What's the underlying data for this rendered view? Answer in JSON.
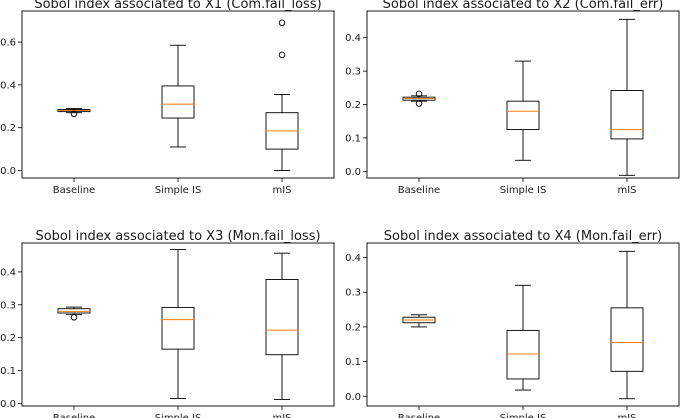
{
  "chart_data": [
    {
      "type": "box",
      "title": "Sobol index associated to X1 (Com.fail_loss)",
      "xlabel": "",
      "ylabel": "",
      "ylim": [
        -0.035,
        0.745
      ],
      "yticks": [
        "0.0",
        "0.2",
        "0.4",
        "0.6"
      ],
      "categories": [
        "Baseline",
        "Simple IS",
        "mIS"
      ],
      "boxes": [
        {
          "min": 0.27,
          "q1": 0.275,
          "median": 0.28,
          "q3": 0.285,
          "max": 0.29,
          "fliers": [
            0.265
          ]
        },
        {
          "min": 0.11,
          "q1": 0.245,
          "median": 0.31,
          "q3": 0.395,
          "max": 0.585,
          "fliers": []
        },
        {
          "min": 0.0,
          "q1": 0.1,
          "median": 0.185,
          "q3": 0.27,
          "max": 0.355,
          "fliers": [
            0.54,
            0.69
          ]
        }
      ]
    },
    {
      "type": "box",
      "title": "Sobol index associated to X2 (Com.fail_err)",
      "xlabel": "",
      "ylabel": "",
      "ylim": [
        -0.02,
        0.48
      ],
      "yticks": [
        "0.0",
        "0.1",
        "0.2",
        "0.3",
        "0.4"
      ],
      "categories": [
        "Baseline",
        "Simple IS",
        "mIS"
      ],
      "boxes": [
        {
          "min": 0.21,
          "q1": 0.213,
          "median": 0.218,
          "q3": 0.222,
          "max": 0.226,
          "fliers": [
            0.203,
            0.232
          ]
        },
        {
          "min": 0.033,
          "q1": 0.125,
          "median": 0.18,
          "q3": 0.21,
          "max": 0.33,
          "fliers": []
        },
        {
          "min": -0.012,
          "q1": 0.097,
          "median": 0.125,
          "q3": 0.242,
          "max": 0.455,
          "fliers": []
        }
      ]
    },
    {
      "type": "box",
      "title": "Sobol index associated to X3 (Mon.fail_loss)",
      "xlabel": "",
      "ylabel": "",
      "ylim": [
        -0.008,
        0.488
      ],
      "yticks": [
        "0.0",
        "0.1",
        "0.2",
        "0.3",
        "0.4"
      ],
      "categories": [
        "Baseline",
        "Simple IS",
        "mIS"
      ],
      "boxes": [
        {
          "min": 0.27,
          "q1": 0.275,
          "median": 0.28,
          "q3": 0.288,
          "max": 0.293,
          "fliers": [
            0.262
          ]
        },
        {
          "min": 0.015,
          "q1": 0.165,
          "median": 0.255,
          "q3": 0.292,
          "max": 0.468,
          "fliers": []
        },
        {
          "min": 0.012,
          "q1": 0.148,
          "median": 0.223,
          "q3": 0.377,
          "max": 0.457,
          "fliers": []
        }
      ]
    },
    {
      "type": "box",
      "title": "Sobol index associated to X4 (Mon.fail_err)",
      "xlabel": "",
      "ylabel": "",
      "ylim": [
        -0.028,
        0.442
      ],
      "yticks": [
        "0.0",
        "0.1",
        "0.2",
        "0.3",
        "0.4"
      ],
      "categories": [
        "Baseline",
        "Simple IS",
        "mIS"
      ],
      "boxes": [
        {
          "min": 0.2,
          "q1": 0.212,
          "median": 0.22,
          "q3": 0.228,
          "max": 0.235,
          "fliers": []
        },
        {
          "min": 0.018,
          "q1": 0.05,
          "median": 0.122,
          "q3": 0.19,
          "max": 0.32,
          "fliers": []
        },
        {
          "min": -0.007,
          "q1": 0.072,
          "median": 0.155,
          "q3": 0.255,
          "max": 0.418,
          "fliers": []
        }
      ]
    }
  ],
  "colors": {
    "box": "#000000",
    "median": "#ff7f0e",
    "axes": "#000000"
  }
}
